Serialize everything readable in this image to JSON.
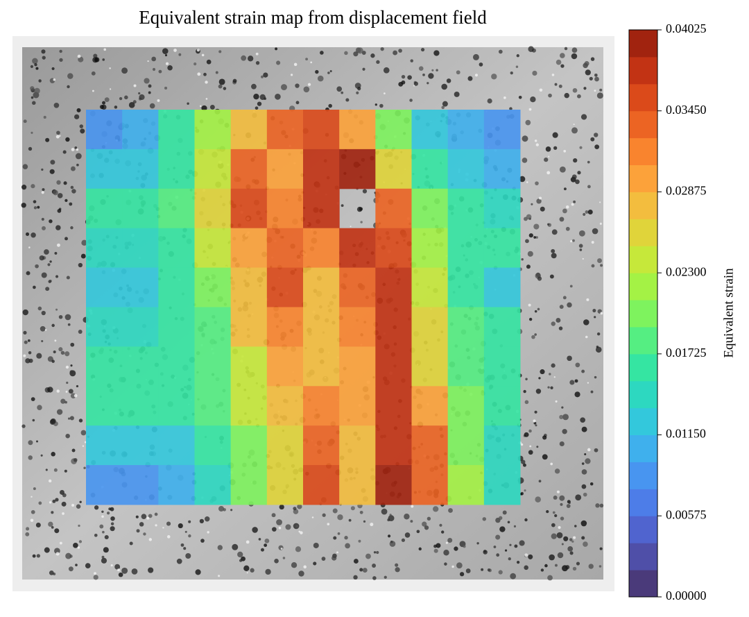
{
  "chart_data": {
    "type": "heatmap",
    "title": "Equivalent strain map from displacement field",
    "colorbar_label": "Equivalent strain",
    "zlim": [
      0,
      0.04025
    ],
    "colorbar_ticks": [
      {
        "value": 0,
        "label": "0.00000"
      },
      {
        "value": 0.00575,
        "label": "0.00575"
      },
      {
        "value": 0.0115,
        "label": "0.01150"
      },
      {
        "value": 0.01725,
        "label": "0.01725"
      },
      {
        "value": 0.023,
        "label": "0.02300"
      },
      {
        "value": 0.02875,
        "label": "0.02875"
      },
      {
        "value": 0.0345,
        "label": "0.03450"
      },
      {
        "value": 0.04025,
        "label": "0.04025"
      }
    ],
    "colors": [
      "#4a3a7a",
      "#4f4fa8",
      "#5064cf",
      "#4d7de8",
      "#4895f0",
      "#3fb0ed",
      "#33c8dc",
      "#2dd8c0",
      "#35e5a2",
      "#55ee82",
      "#7ef35e",
      "#a4f245",
      "#c6e83a",
      "#e0d43a",
      "#f3bd3e",
      "#fca23a",
      "#f9842e",
      "#ec6423",
      "#db4a1a",
      "#c23314",
      "#a1230f"
    ],
    "z": [
      [
        0.009,
        0.011,
        0.017,
        0.022,
        0.027,
        0.033,
        0.036,
        0.03,
        0.02,
        0.013,
        0.011,
        0.009
      ],
      [
        0.012,
        0.013,
        0.017,
        0.024,
        0.033,
        0.03,
        0.038,
        0.039,
        0.025,
        0.016,
        0.013,
        0.011
      ],
      [
        0.016,
        0.016,
        0.018,
        0.025,
        0.035,
        0.031,
        0.038,
        null,
        0.034,
        0.02,
        0.016,
        0.015
      ],
      [
        0.015,
        0.015,
        0.017,
        0.023,
        0.03,
        0.034,
        0.031,
        0.037,
        0.036,
        0.022,
        0.017,
        0.016
      ],
      [
        0.012,
        0.012,
        0.016,
        0.021,
        0.028,
        0.036,
        0.027,
        0.034,
        0.038,
        0.024,
        0.017,
        0.013
      ],
      [
        0.014,
        0.015,
        0.016,
        0.019,
        0.027,
        0.032,
        0.027,
        0.032,
        0.037,
        0.025,
        0.018,
        0.016
      ],
      [
        0.017,
        0.017,
        0.017,
        0.018,
        0.024,
        0.029,
        0.028,
        0.03,
        0.038,
        0.026,
        0.019,
        0.017
      ],
      [
        0.016,
        0.016,
        0.016,
        0.018,
        0.023,
        0.027,
        0.031,
        0.029,
        0.038,
        0.03,
        0.02,
        0.017
      ],
      [
        0.012,
        0.012,
        0.013,
        0.016,
        0.021,
        0.026,
        0.034,
        0.027,
        0.038,
        0.033,
        0.021,
        0.015
      ],
      [
        0.008,
        0.009,
        0.01,
        0.014,
        0.02,
        0.025,
        0.036,
        0.027,
        0.04,
        0.034,
        0.022,
        0.014
      ]
    ]
  }
}
